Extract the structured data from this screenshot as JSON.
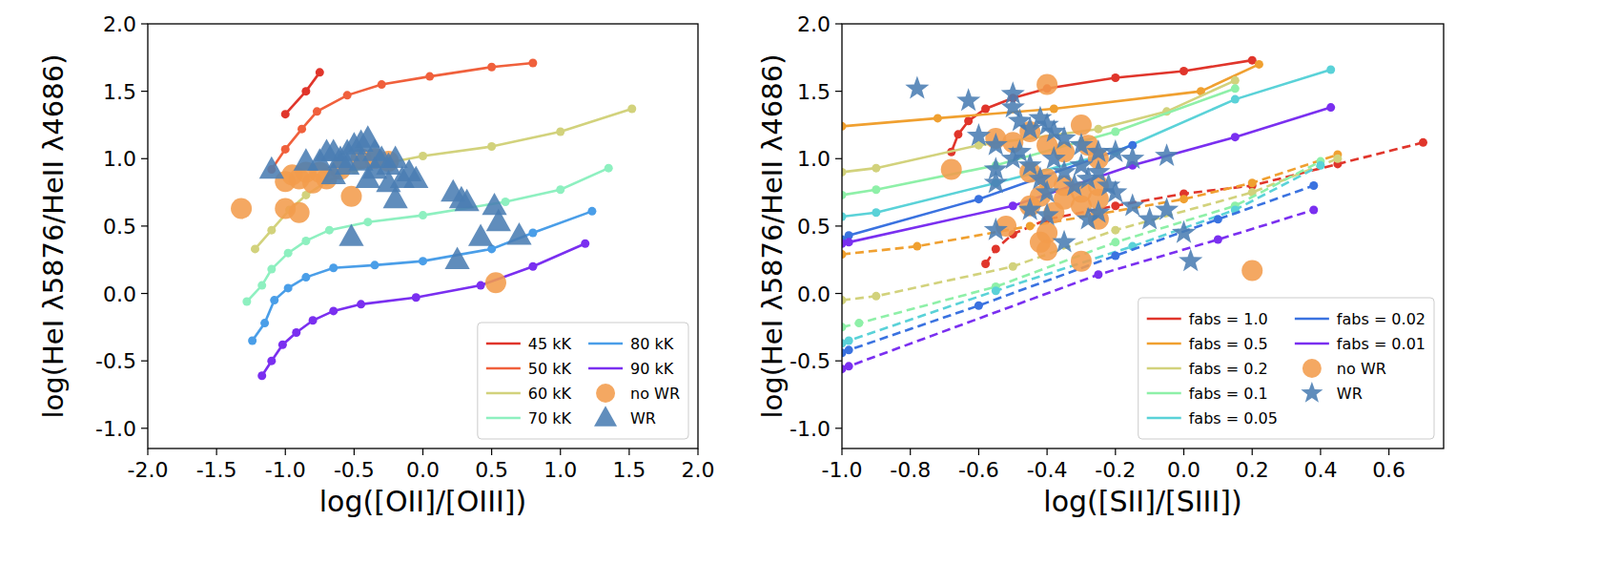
{
  "chart_data": [
    {
      "type": "scatter",
      "x_label": "log([OII]/[OIII])",
      "y_label": "log(HeI λ5876/HeII λ4686)",
      "xlim": [
        -2.0,
        2.0
      ],
      "ylim": [
        -1.15,
        2.0
      ],
      "xticks": [
        {
          "value": -2.0,
          "label": "-2.0"
        },
        -1.5,
        {
          "value": -1.0,
          "label": "-1.0"
        },
        -0.5,
        {
          "value": 0.0,
          "label": "0.0"
        },
        0.5,
        {
          "value": 1.0,
          "label": "1.0"
        },
        1.5,
        {
          "value": 2.0,
          "label": "2.0"
        }
      ],
      "yticks": [
        {
          "value": -1.0,
          "label": "-1.0"
        },
        -0.5,
        {
          "value": 0.0,
          "label": "0.0"
        },
        0.5,
        {
          "value": 1.0,
          "label": "1.0"
        },
        1.5,
        {
          "value": 2.0,
          "label": "2.0"
        }
      ],
      "grid": false,
      "legend": "lower right",
      "series": [
        {
          "name": "45 kK",
          "type": "line",
          "color": "#e0352b",
          "marker": "circle",
          "line_style": "solid",
          "x": [
            -1.0,
            -0.85,
            -0.75
          ],
          "values": [
            1.33,
            1.5,
            1.64
          ]
        },
        {
          "name": "50 kK",
          "type": "line",
          "color": "#f0603c",
          "marker": "circle",
          "line_style": "solid",
          "x": [
            -1.1,
            -1.0,
            -0.88,
            -0.77,
            -0.55,
            -0.3,
            0.05,
            0.5,
            0.8
          ],
          "values": [
            0.92,
            1.07,
            1.22,
            1.35,
            1.47,
            1.55,
            1.61,
            1.68,
            1.71
          ]
        },
        {
          "name": "60 kK",
          "type": "line",
          "color": "#d2d27c",
          "marker": "circle",
          "line_style": "solid",
          "x": [
            -1.22,
            -1.1,
            -0.97,
            -0.85,
            -0.7,
            -0.5,
            0.0,
            0.5,
            1.0,
            1.52
          ],
          "values": [
            0.33,
            0.47,
            0.62,
            0.73,
            0.83,
            0.92,
            1.02,
            1.09,
            1.2,
            1.37
          ]
        },
        {
          "name": "70 kK",
          "type": "line",
          "color": "#8ef0c0",
          "marker": "circle",
          "line_style": "solid",
          "x": [
            -1.28,
            -1.17,
            -1.1,
            -0.98,
            -0.85,
            -0.68,
            -0.4,
            0.0,
            0.6,
            1.0,
            1.35
          ],
          "values": [
            -0.06,
            0.06,
            0.18,
            0.3,
            0.39,
            0.47,
            0.53,
            0.58,
            0.68,
            0.77,
            0.93
          ]
        },
        {
          "name": "80 kK",
          "type": "line",
          "color": "#4a9ee8",
          "marker": "circle",
          "line_style": "solid",
          "x": [
            -1.24,
            -1.15,
            -1.08,
            -0.98,
            -0.85,
            -0.65,
            -0.35,
            0.0,
            0.5,
            0.8,
            1.23
          ],
          "values": [
            -0.35,
            -0.22,
            -0.05,
            0.04,
            0.12,
            0.19,
            0.21,
            0.24,
            0.33,
            0.45,
            0.61
          ]
        },
        {
          "name": "90 kK",
          "type": "line",
          "color": "#7a2ff0",
          "marker": "circle",
          "line_style": "solid",
          "x": [
            -1.17,
            -1.1,
            -1.02,
            -0.92,
            -0.8,
            -0.65,
            -0.45,
            -0.05,
            0.42,
            0.8,
            1.18
          ],
          "values": [
            -0.61,
            -0.5,
            -0.38,
            -0.29,
            -0.2,
            -0.13,
            -0.08,
            -0.03,
            0.06,
            0.2,
            0.37
          ]
        },
        {
          "name": "no WR",
          "type": "scatter",
          "color": "#f39c4c",
          "marker": "circle",
          "x": [
            -1.32,
            -1.0,
            -0.9,
            -1.0,
            -0.95,
            -0.85,
            -0.8,
            -0.75,
            -0.7,
            -0.6,
            -0.52,
            -0.45,
            -0.35,
            -0.25,
            0.53,
            -0.9
          ],
          "values": [
            0.63,
            0.63,
            0.6,
            0.83,
            0.88,
            0.9,
            0.82,
            0.9,
            0.85,
            0.92,
            0.72,
            1.0,
            1.0,
            0.98,
            0.08,
            0.85
          ]
        },
        {
          "name": "WR",
          "type": "scatter",
          "color": "#4a7db3",
          "marker": "triangle",
          "x": [
            -1.1,
            -0.85,
            -0.75,
            -0.7,
            -0.65,
            -0.6,
            -0.55,
            -0.5,
            -0.45,
            -0.4,
            -0.35,
            -0.3,
            -0.25,
            -0.2,
            -0.15,
            -0.1,
            -0.05,
            -0.2,
            -0.65,
            -0.55,
            -0.45,
            -0.4,
            -0.52,
            0.22,
            0.28,
            0.32,
            0.25,
            0.42,
            0.52,
            0.55,
            0.7,
            -0.35,
            -0.25
          ],
          "values": [
            0.92,
            0.98,
            0.98,
            1.05,
            0.88,
            1.0,
            1.05,
            1.1,
            1.12,
            1.15,
            1.05,
            1.0,
            0.95,
            1.0,
            0.85,
            0.9,
            0.85,
            0.7,
            1.05,
            0.95,
            0.98,
            0.85,
            0.42,
            0.75,
            0.7,
            0.68,
            0.25,
            0.42,
            0.65,
            0.53,
            0.43,
            0.92,
            0.82
          ]
        }
      ]
    },
    {
      "type": "scatter",
      "x_label": "log([SII]/[SIII])",
      "y_label": "log(HeI λ5876/HeII λ4686)",
      "xlim": [
        -1.0,
        0.76
      ],
      "ylim": [
        -1.15,
        2.0
      ],
      "xticks": [
        {
          "value": -1.0,
          "label": "-1.0"
        },
        -0.8,
        -0.6,
        -0.4,
        -0.2,
        {
          "value": 0.0,
          "label": "0.0"
        },
        0.2,
        0.4,
        0.6
      ],
      "yticks": [
        {
          "value": -1.0,
          "label": "-1.0"
        },
        -0.5,
        {
          "value": 0.0,
          "label": "0.0"
        },
        0.5,
        {
          "value": 1.0,
          "label": "1.0"
        },
        1.5,
        {
          "value": 2.0,
          "label": "2.0"
        }
      ],
      "grid": false,
      "legend": "lower right",
      "series": [
        {
          "name": "fabs = 1.0",
          "type": "line",
          "color": "#e0352b",
          "marker": "circle",
          "line_style": "solid",
          "x": [
            -0.68,
            -0.66,
            -0.63,
            -0.58,
            -0.5,
            -0.4,
            -0.2,
            0.0,
            0.2
          ],
          "values": [
            1.05,
            1.18,
            1.28,
            1.37,
            1.45,
            1.52,
            1.6,
            1.65,
            1.73
          ]
        },
        {
          "name": "fabs = 0.5",
          "type": "line",
          "color": "#f0a030",
          "marker": "circle",
          "line_style": "solid",
          "x": [
            -1.0,
            -0.72,
            -0.38,
            0.05,
            0.22
          ],
          "values": [
            1.24,
            1.3,
            1.37,
            1.5,
            1.7
          ]
        },
        {
          "name": "fabs = 0.2",
          "type": "line",
          "color": "#d2d27c",
          "marker": "circle",
          "line_style": "solid",
          "x": [
            -1.0,
            -0.9,
            -0.6,
            -0.25,
            -0.05,
            0.15
          ],
          "values": [
            0.9,
            0.93,
            1.1,
            1.22,
            1.35,
            1.58
          ]
        },
        {
          "name": "fabs = 0.1",
          "type": "line",
          "color": "#8ef0a8",
          "marker": "circle",
          "line_style": "solid",
          "x": [
            -1.0,
            -0.9,
            -0.55,
            -0.2,
            0.15
          ],
          "values": [
            0.73,
            0.77,
            0.95,
            1.2,
            1.52
          ]
        },
        {
          "name": "fabs = 0.05",
          "type": "line",
          "color": "#5ad2d8",
          "marker": "circle",
          "line_style": "solid",
          "x": [
            -1.0,
            -0.9,
            -0.55,
            -0.2,
            0.15,
            0.43
          ],
          "values": [
            0.57,
            0.6,
            0.82,
            1.05,
            1.44,
            1.66
          ]
        },
        {
          "name": "fabs = 0.02",
          "type": "line",
          "color": "#3a72e0",
          "marker": "circle",
          "line_style": "solid",
          "x": [
            -1.0,
            -0.98,
            -0.6,
            -0.15
          ],
          "values": [
            0.4,
            0.43,
            0.7,
            1.1
          ]
        },
        {
          "name": "fabs = 0.01",
          "type": "line",
          "color": "#7a2ff0",
          "marker": "circle",
          "line_style": "solid",
          "x": [
            -1.0,
            -0.98,
            -0.5,
            -0.15,
            0.15,
            0.43
          ],
          "values": [
            0.37,
            0.38,
            0.65,
            0.95,
            1.16,
            1.38
          ]
        },
        {
          "type": "line",
          "color": "#e0352b",
          "marker": "circle",
          "line_style": "dashed",
          "x": [
            -0.58,
            -0.55,
            -0.5,
            -0.4,
            -0.2,
            0.0,
            0.2,
            0.45,
            0.7
          ],
          "values": [
            0.22,
            0.33,
            0.44,
            0.55,
            0.65,
            0.74,
            0.8,
            0.96,
            1.12
          ]
        },
        {
          "type": "line",
          "color": "#f0a030",
          "marker": "circle",
          "line_style": "dashed",
          "x": [
            -1.0,
            -0.78,
            -0.45,
            0.0,
            0.2,
            0.45
          ],
          "values": [
            0.29,
            0.35,
            0.5,
            0.7,
            0.82,
            1.03
          ]
        },
        {
          "type": "line",
          "color": "#d2d27c",
          "marker": "circle",
          "line_style": "dashed",
          "x": [
            -1.0,
            -0.9,
            -0.5,
            -0.2,
            0.2,
            0.45
          ],
          "values": [
            -0.05,
            -0.02,
            0.2,
            0.47,
            0.75,
            1.0
          ]
        },
        {
          "type": "line",
          "color": "#8ef0a8",
          "marker": "circle",
          "line_style": "dashed",
          "x": [
            -1.0,
            -0.95,
            -0.55,
            -0.2,
            0.15,
            0.4
          ],
          "values": [
            -0.25,
            -0.22,
            0.05,
            0.38,
            0.65,
            0.98
          ]
        },
        {
          "type": "line",
          "color": "#5ad2d8",
          "marker": "circle",
          "line_style": "dashed",
          "x": [
            -1.0,
            -0.98,
            -0.55,
            -0.15,
            0.15,
            0.4
          ],
          "values": [
            -0.37,
            -0.35,
            0.02,
            0.35,
            0.62,
            0.95
          ]
        },
        {
          "type": "line",
          "color": "#3a72e0",
          "marker": "circle",
          "line_style": "dashed",
          "x": [
            -1.0,
            -0.98,
            -0.6,
            -0.2,
            0.1,
            0.38
          ],
          "values": [
            -0.44,
            -0.42,
            -0.09,
            0.28,
            0.55,
            0.8
          ]
        },
        {
          "type": "line",
          "color": "#7a2ff0",
          "marker": "circle",
          "line_style": "dashed",
          "x": [
            -1.0,
            -0.98,
            -0.25,
            0.1,
            0.38
          ],
          "values": [
            -0.56,
            -0.54,
            0.14,
            0.4,
            0.62
          ]
        },
        {
          "name": "no WR",
          "type": "scatter",
          "color": "#f39c4c",
          "marker": "circle",
          "x": [
            -0.68,
            -0.55,
            -0.5,
            -0.45,
            -0.4,
            -0.4,
            -0.35,
            -0.3,
            -0.28,
            -0.25,
            -0.45,
            -0.4,
            -0.35,
            -0.3,
            -0.25,
            -0.25,
            -0.25,
            -0.3,
            -0.35,
            -0.42,
            -0.45,
            -0.52,
            -0.4,
            -0.42,
            -0.4,
            -0.3,
            -0.38,
            0.2
          ],
          "values": [
            0.92,
            1.15,
            1.12,
            1.2,
            1.55,
            1.1,
            1.05,
            1.25,
            1.1,
            1.0,
            0.9,
            0.85,
            0.8,
            0.75,
            0.8,
            0.7,
            0.55,
            0.65,
            0.7,
            0.72,
            0.65,
            0.5,
            0.45,
            0.38,
            0.32,
            0.24,
            0.6,
            0.17
          ]
        },
        {
          "name": "WR",
          "type": "scatter",
          "color": "#4a7db3",
          "marker": "star",
          "x": [
            -0.78,
            -0.63,
            -0.6,
            -0.55,
            -0.5,
            -0.5,
            -0.48,
            -0.45,
            -0.42,
            -0.4,
            -0.38,
            -0.35,
            -0.3,
            -0.25,
            -0.2,
            -0.15,
            -0.05,
            -0.55,
            -0.55,
            -0.5,
            -0.45,
            -0.42,
            -0.4,
            -0.35,
            -0.3,
            -0.28,
            -0.25,
            -0.22,
            -0.2,
            -0.15,
            -0.45,
            -0.4,
            -0.35,
            -0.25,
            -0.28,
            -0.55,
            -0.1,
            -0.05,
            0.0,
            0.02,
            -0.48,
            -0.38,
            -0.32
          ],
          "values": [
            1.52,
            1.43,
            1.17,
            1.1,
            1.48,
            1.38,
            1.28,
            1.22,
            1.3,
            1.25,
            1.2,
            1.15,
            1.1,
            1.05,
            1.05,
            1.0,
            1.02,
            0.92,
            0.82,
            1.0,
            0.95,
            0.85,
            0.75,
            0.9,
            0.95,
            0.85,
            0.9,
            0.8,
            0.75,
            0.65,
            0.62,
            0.58,
            0.38,
            0.6,
            0.55,
            0.47,
            0.55,
            0.62,
            0.45,
            0.24,
            1.05,
            1.0,
            0.8
          ]
        }
      ]
    }
  ]
}
